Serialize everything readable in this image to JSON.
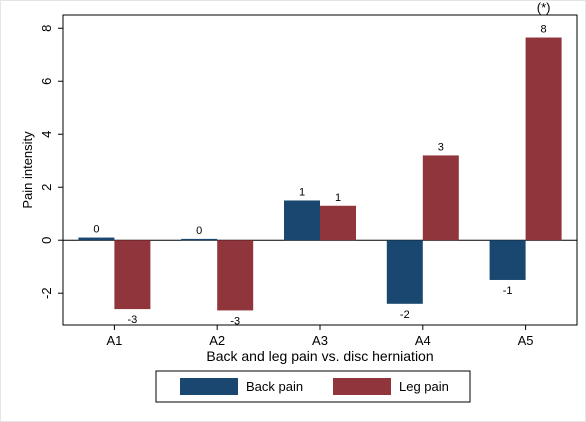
{
  "chart_data": {
    "type": "bar",
    "title": "",
    "xlabel": "Back and leg pain vs. disc herniation",
    "ylabel": "Pain intensity",
    "categories": [
      "A1",
      "A2",
      "A3",
      "A4",
      "A5"
    ],
    "ylim": [
      -3.2,
      8.5
    ],
    "yticks": [
      -2,
      0,
      2,
      4,
      6,
      8
    ],
    "grid": false,
    "legend_position": "bottom",
    "series": [
      {
        "name": "Back pain",
        "color": "#1a476f",
        "values": [
          0.1,
          0.05,
          1.5,
          -2.4,
          -1.5
        ],
        "labels": [
          "0",
          "0",
          "1",
          "-2",
          "-1"
        ]
      },
      {
        "name": "Leg pain",
        "color": "#90353b",
        "values": [
          -2.6,
          -2.65,
          1.3,
          3.2,
          7.65
        ],
        "labels": [
          "-3",
          "-3",
          "1",
          "3",
          "8"
        ]
      }
    ],
    "annotations": [
      {
        "category": "A5",
        "text": "(*)"
      }
    ]
  }
}
